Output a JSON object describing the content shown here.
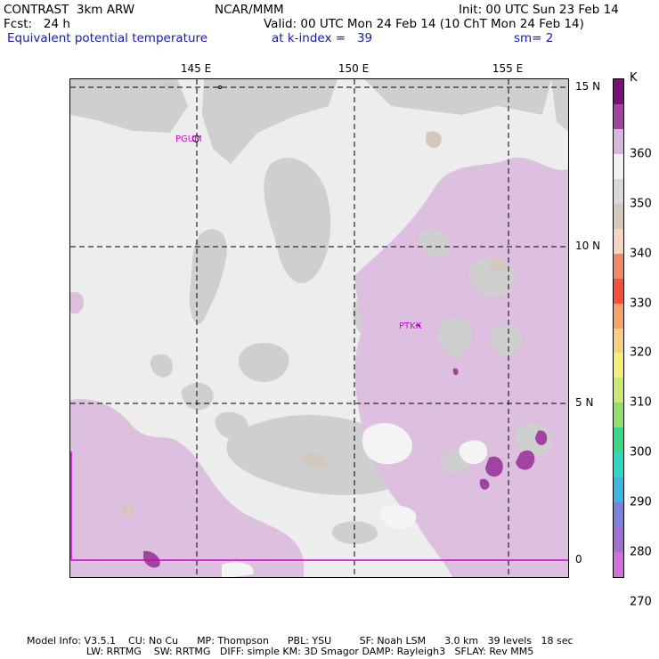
{
  "header": {
    "line1_left": "CONTRAST  3km ARW",
    "line1_center": "NCAR/MMM",
    "line1_right": "Init: 00 UTC Sun 23 Feb 14",
    "line2_left": "Fcst:   24 h",
    "line2_right": "Valid: 00 UTC Mon 24 Feb 14 (10 ChT Mon 24 Feb 14)",
    "line3_left": "Equivalent potential temperature",
    "line3_mid": "at k-index =   39",
    "line3_right": "sm= 2"
  },
  "map": {
    "lon_labels": [
      "145 E",
      "150 E",
      "155 E"
    ],
    "lat_labels": [
      "15 N",
      "10 N",
      "5 N",
      "0"
    ],
    "stations": [
      "PGUM",
      "PTKK"
    ]
  },
  "colorbar": {
    "unit": "K",
    "labels": [
      "360",
      "350",
      "340",
      "330",
      "320",
      "310",
      "300",
      "290",
      "280",
      "270"
    ],
    "colors": [
      "#7a0f7a",
      "#a0449f",
      "#d9b5dc",
      "#f2f2f2",
      "#d8d8d8",
      "#d3c8bd",
      "#f5d6c0",
      "#f08a66",
      "#f5503a",
      "#f6a06a",
      "#f7cf80",
      "#f3f07a",
      "#cde870",
      "#90e070",
      "#38d888",
      "#30d8c0",
      "#3ab8e0",
      "#7c82dc",
      "#a070d0",
      "#d070d8"
    ]
  },
  "footer": {
    "line1": "Model Info: V3.5.1    CU: No Cu      MP: Thompson      PBL: YSU         SF: Noah LSM      3.0 km   39 levels   18 sec",
    "line2": "LW: RRTMG    SW: RRTMG   DIFF: simple KM: 3D Smagor DAMP: Rayleigh3   SFLAY: Rev MM5"
  }
}
